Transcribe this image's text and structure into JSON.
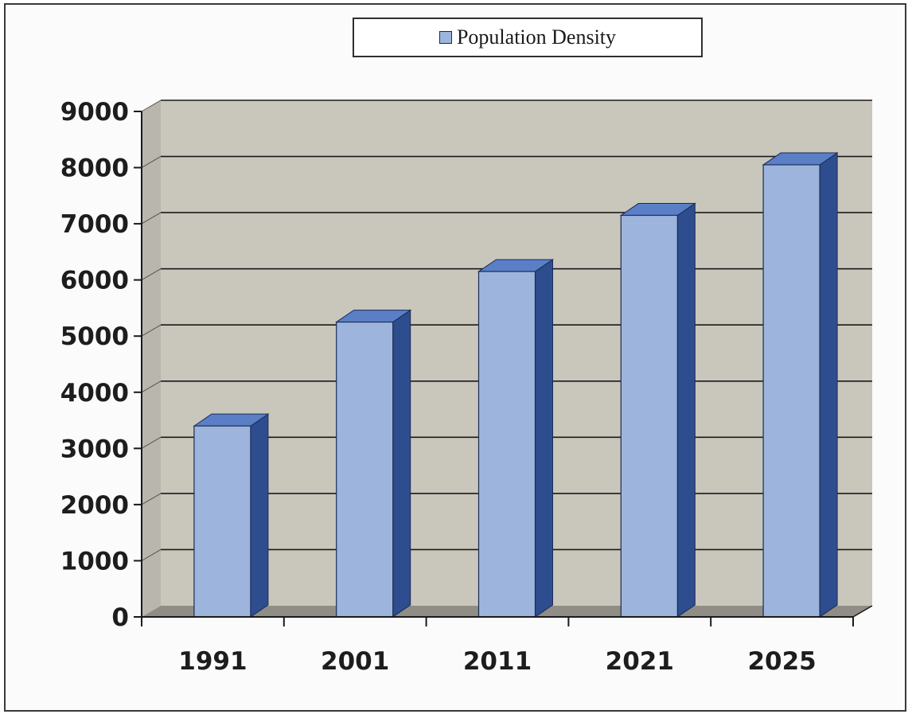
{
  "chart_data": {
    "type": "bar",
    "categories": [
      "1991",
      "2001",
      "2011",
      "2021",
      "2025"
    ],
    "series": [
      {
        "name": "Population Density",
        "values": [
          3400,
          5250,
          6150,
          7150,
          8050
        ]
      }
    ],
    "ylim": [
      0,
      9000
    ],
    "yticks": [
      "0",
      "1000",
      "2000",
      "3000",
      "4000",
      "5000",
      "6000",
      "7000",
      "8000",
      "9000"
    ],
    "grid": true,
    "legend_position": "top-center",
    "style": "3d-column",
    "colors": {
      "bar_front": "#9db5dc",
      "bar_side": "#2e4d8f",
      "bar_top": "#5a7fc6",
      "plot_background": "#c9c6bc",
      "floor": "#8f8d85"
    }
  },
  "legend": {
    "label": "Population Density"
  }
}
